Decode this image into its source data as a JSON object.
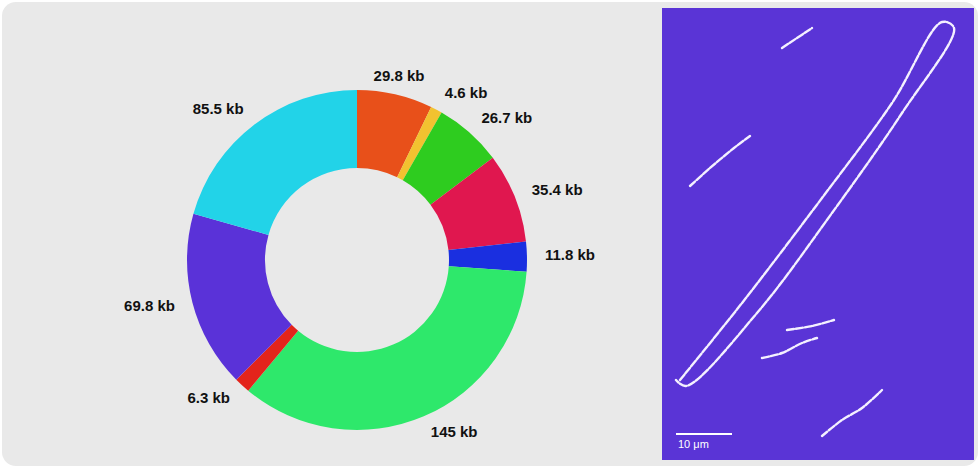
{
  "chart_data": {
    "type": "donut",
    "values": [
      29.8,
      4.6,
      26.7,
      35.4,
      11.8,
      145,
      6.3,
      69.8,
      85.5
    ],
    "value_labels": [
      "29.8 kb",
      "4.6 kb",
      "26.7 kb",
      "35.4 kb",
      "11.8 kb",
      "145 kb",
      "6.3 kb",
      "69.8 kb",
      "85.5 kb"
    ],
    "colors": [
      "#e8501a",
      "#f2c230",
      "#2ecc1f",
      "#e0174f",
      "#1a2fe0",
      "#2ee86b",
      "#e3241b",
      "#5a32d8",
      "#22d3e8"
    ],
    "data_labels": true,
    "annotations": [
      "10 μm"
    ]
  }
}
